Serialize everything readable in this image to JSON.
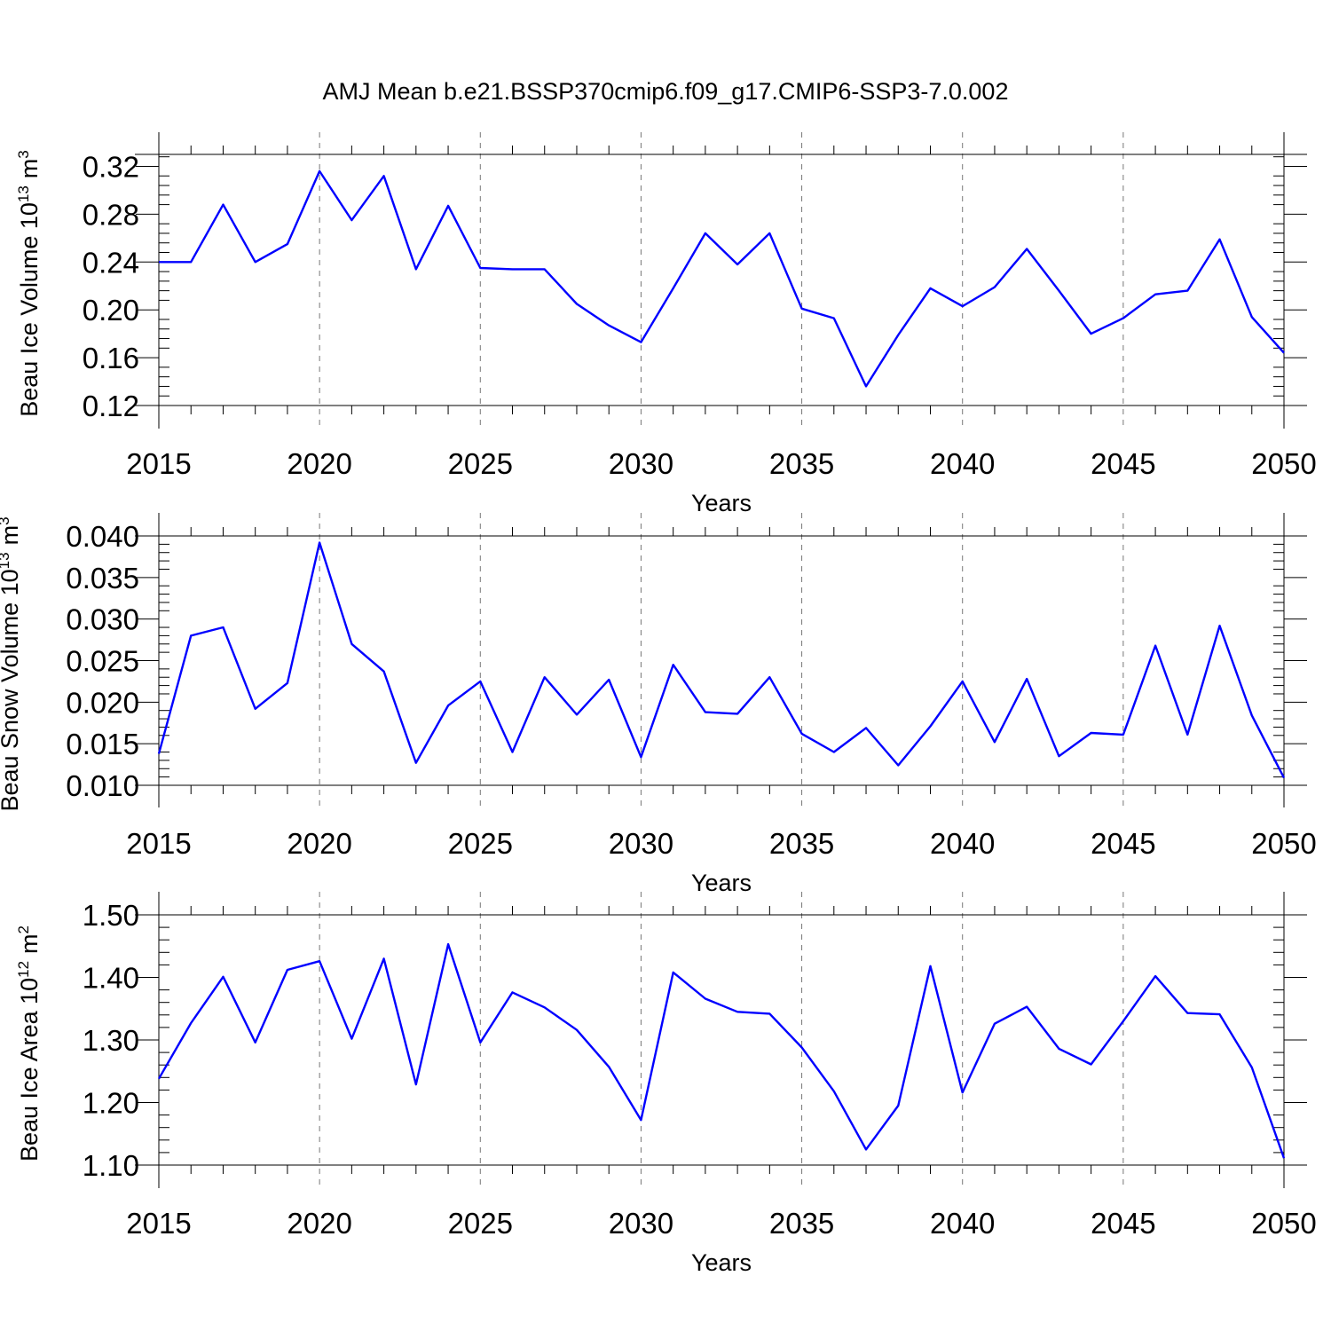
{
  "title": "AMJ Mean b.e21.BSSP370cmip6.f09_g17.CMIP6-SSP3-7.0.002",
  "chart_data": [
    {
      "type": "line",
      "ylabel": "Beau Ice Volume 10",
      "ylabel_sup": "13",
      "ylabel_unit": "m",
      "ylabel_unit_sup": "3",
      "xlabel": "Years",
      "xlim": [
        2015,
        2050
      ],
      "ylim": [
        0.12,
        0.33
      ],
      "xticks": [
        "2015",
        "2020",
        "2025",
        "2030",
        "2035",
        "2040",
        "2045",
        "2050"
      ],
      "yticks": [
        "0.12",
        "0.16",
        "0.20",
        "0.24",
        "0.28",
        "0.32"
      ],
      "color": "#0000ff",
      "x": [
        2015,
        2016,
        2017,
        2018,
        2019,
        2020,
        2021,
        2022,
        2023,
        2024,
        2025,
        2026,
        2027,
        2028,
        2029,
        2030,
        2031,
        2032,
        2033,
        2034,
        2035,
        2036,
        2037,
        2038,
        2039,
        2040,
        2041,
        2042,
        2043,
        2044,
        2045,
        2046,
        2047,
        2048,
        2049,
        2050
      ],
      "values": [
        0.24,
        0.24,
        0.288,
        0.24,
        0.255,
        0.316,
        0.275,
        0.312,
        0.234,
        0.287,
        0.235,
        0.234,
        0.234,
        0.205,
        0.187,
        0.173,
        0.218,
        0.264,
        0.238,
        0.264,
        0.201,
        0.193,
        0.136,
        0.179,
        0.218,
        0.203,
        0.219,
        0.251,
        0.216,
        0.18,
        0.193,
        0.213,
        0.216,
        0.259,
        0.194,
        0.164
      ]
    },
    {
      "type": "line",
      "ylabel": "Beau Snow Volume 10",
      "ylabel_sup": "13",
      "ylabel_unit": "m",
      "ylabel_unit_sup": "3",
      "xlabel": "Years",
      "xlim": [
        2015,
        2050
      ],
      "ylim": [
        0.01,
        0.04
      ],
      "xticks": [
        "2015",
        "2020",
        "2025",
        "2030",
        "2035",
        "2040",
        "2045",
        "2050"
      ],
      "yticks": [
        "0.010",
        "0.015",
        "0.020",
        "0.025",
        "0.030",
        "0.035",
        "0.040"
      ],
      "color": "#0000ff",
      "x": [
        2015,
        2016,
        2017,
        2018,
        2019,
        2020,
        2021,
        2022,
        2023,
        2024,
        2025,
        2026,
        2027,
        2028,
        2029,
        2030,
        2031,
        2032,
        2033,
        2034,
        2035,
        2036,
        2037,
        2038,
        2039,
        2040,
        2041,
        2042,
        2043,
        2044,
        2045,
        2046,
        2047,
        2048,
        2049,
        2050
      ],
      "values": [
        0.0138,
        0.028,
        0.029,
        0.0192,
        0.0223,
        0.0392,
        0.027,
        0.0237,
        0.0127,
        0.0196,
        0.0225,
        0.014,
        0.023,
        0.0185,
        0.0227,
        0.0134,
        0.0245,
        0.0188,
        0.0186,
        0.023,
        0.0162,
        0.014,
        0.0169,
        0.0124,
        0.0171,
        0.0225,
        0.0152,
        0.0228,
        0.0135,
        0.0163,
        0.0161,
        0.0268,
        0.0161,
        0.0292,
        0.0184,
        0.0109
      ]
    },
    {
      "type": "line",
      "ylabel": "Beau Ice Area 10",
      "ylabel_sup": "12",
      "ylabel_unit": "m",
      "ylabel_unit_sup": "2",
      "xlabel": "Years",
      "xlim": [
        2015,
        2050
      ],
      "ylim": [
        1.1,
        1.5
      ],
      "xticks": [
        "2015",
        "2020",
        "2025",
        "2030",
        "2035",
        "2040",
        "2045",
        "2050"
      ],
      "yticks": [
        "1.10",
        "1.20",
        "1.30",
        "1.40",
        "1.50"
      ],
      "color": "#0000ff",
      "x": [
        2015,
        2016,
        2017,
        2018,
        2019,
        2020,
        2021,
        2022,
        2023,
        2024,
        2025,
        2026,
        2027,
        2028,
        2029,
        2030,
        2031,
        2032,
        2033,
        2034,
        2035,
        2036,
        2037,
        2038,
        2039,
        2040,
        2041,
        2042,
        2043,
        2044,
        2045,
        2046,
        2047,
        2048,
        2049,
        2050
      ],
      "values": [
        1.238,
        1.327,
        1.401,
        1.296,
        1.412,
        1.426,
        1.302,
        1.43,
        1.229,
        1.453,
        1.296,
        1.376,
        1.352,
        1.316,
        1.257,
        1.172,
        1.408,
        1.366,
        1.345,
        1.342,
        1.288,
        1.218,
        1.125,
        1.195,
        1.418,
        1.216,
        1.326,
        1.353,
        1.286,
        1.261,
        1.33,
        1.402,
        1.343,
        1.341,
        1.256,
        1.111
      ]
    }
  ]
}
